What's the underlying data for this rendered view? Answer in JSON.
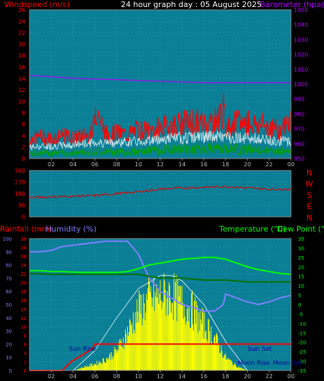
{
  "header": {
    "left_title": "Windspeed (m/s)",
    "center_title": "24 hour graph day : 05 August 2025",
    "right_title": "Barometer (hpa)"
  },
  "labels": {
    "rainfall": "Rainfall (mm)",
    "humidity": "Humidity (%)",
    "temperature": "Temperature (°C)",
    "dewpoint": "Dew Point (°C)",
    "sun_rise": "Sun Rise",
    "sun_set": "Sun Set",
    "moon_rise": "Moon Rise",
    "moon_set": "Moon Set"
  },
  "colors": {
    "plot_bg": "#0b7f96",
    "wind": "#ff0000",
    "gust": "#ff0000",
    "avg_wind": "#ffffff",
    "wind_low": "#00a000",
    "baro": "#b000ff",
    "direction": "#dd0000",
    "humidity": "#8080ff",
    "temperature": "#00ff00",
    "dewpoint": "#007000",
    "rain": "#ff0000",
    "solar": "#ffff00",
    "left_axis": "#ff0000",
    "humidity_axis": "#8080ff",
    "right_axis": "#00ff00",
    "baro_axis": "#b000ff"
  },
  "chart_data": [
    {
      "type": "line",
      "title": "24 hour graph day : 05 August 2025",
      "ylabel": "Windspeed (m/s)",
      "y2label": "Barometer (hpa)",
      "ylim": [
        0,
        26
      ],
      "y2lim": [
        950,
        1050
      ],
      "yticks": [
        "0",
        "2",
        "4",
        "6",
        "8",
        "10",
        "12",
        "14",
        "16",
        "18",
        "20",
        "22",
        "24",
        "26"
      ],
      "y2ticks": [
        "950",
        "960",
        "970",
        "980",
        "990",
        "1000",
        "1010",
        "1020",
        "1030",
        "1040",
        "1050"
      ],
      "xticks": [
        "02",
        "04",
        "06",
        "08",
        "10",
        "12",
        "14",
        "16",
        "18",
        "20",
        "22",
        "00"
      ],
      "xlim": [
        0,
        24
      ],
      "series": [
        {
          "kind": "gust",
          "x": [
            0,
            1,
            2,
            3,
            4,
            5,
            5.8,
            6,
            7,
            8,
            9,
            10,
            11,
            12,
            13,
            14,
            15,
            16,
            17,
            17.8,
            18,
            19,
            20,
            21,
            22,
            23,
            24
          ],
          "values": [
            4.8,
            5.2,
            4.9,
            5.5,
            5.0,
            5.6,
            6.0,
            12.5,
            6.0,
            6.2,
            5.8,
            7.0,
            6.5,
            7.5,
            8.0,
            8.5,
            9.0,
            8.5,
            9.0,
            11.5,
            8.0,
            8.5,
            8.8,
            8.2,
            7.8,
            6.5,
            9.5
          ]
        },
        {
          "kind": "avg",
          "x": [
            0,
            2,
            4,
            6,
            8,
            10,
            12,
            14,
            16,
            18,
            20,
            22,
            24
          ],
          "values": [
            2.0,
            2.2,
            2.4,
            2.8,
            2.8,
            3.0,
            3.4,
            3.6,
            3.8,
            3.8,
            3.6,
            3.2,
            3.0
          ]
        },
        {
          "kind": "low",
          "x": [
            0,
            2,
            4,
            6,
            8,
            10,
            12,
            14,
            16,
            18,
            20,
            22,
            24
          ],
          "values": [
            1.2,
            1.3,
            1.3,
            1.6,
            1.5,
            1.7,
            2.0,
            2.2,
            2.3,
            2.3,
            2.2,
            1.8,
            1.6
          ]
        },
        {
          "kind": "baro",
          "x": [
            0,
            2,
            4,
            6,
            8,
            10,
            12,
            14,
            16,
            18,
            20,
            22,
            24
          ],
          "values": [
            1006,
            1005,
            1004,
            1003.5,
            1003,
            1002.5,
            1002,
            1001.5,
            1001,
            1001,
            1001,
            1001,
            1001
          ]
        }
      ]
    },
    {
      "type": "line",
      "ylabel_letters": [
        "N",
        "W",
        "S",
        "E",
        "N"
      ],
      "ylim": [
        0,
        360
      ],
      "yticks": [
        "0",
        "90",
        "180",
        "270",
        "360"
      ],
      "xlim": [
        0,
        24
      ],
      "series": [
        {
          "kind": "direction",
          "x": [
            0,
            2,
            4,
            6,
            8,
            10,
            12,
            14,
            16,
            18,
            20,
            22,
            24
          ],
          "values": [
            150,
            155,
            160,
            165,
            180,
            195,
            215,
            225,
            230,
            235,
            225,
            215,
            215
          ]
        }
      ]
    },
    {
      "type": "line",
      "y1label": "Rainfall (mm)",
      "y2label": "Humidity (%)",
      "y3label": "Temperature (°C)",
      "y4label": "Dew Point (°C)",
      "rain_ticks": [
        "0",
        "2",
        "4",
        "6",
        "8",
        "10",
        "12",
        "14",
        "16",
        "18",
        "20",
        "22",
        "24",
        "26",
        "28",
        "30"
      ],
      "humidity_ticks": [
        "0",
        "10",
        "20",
        "30",
        "40",
        "50",
        "60",
        "70",
        "80",
        "90",
        "100"
      ],
      "temp_ticks": [
        "-35",
        "-30",
        "-25",
        "-20",
        "-15",
        "-10",
        "-5",
        "0",
        "5",
        "10",
        "15",
        "20",
        "25",
        "30",
        "35"
      ],
      "rain_lim": [
        0,
        30
      ],
      "humidity_lim": [
        0,
        100
      ],
      "temp_lim": [
        -35,
        35
      ],
      "xticks": [
        "02",
        "04",
        "06",
        "08",
        "10",
        "12",
        "14",
        "16",
        "18",
        "20",
        "22",
        "00"
      ],
      "xlim": [
        0,
        24
      ],
      "series": [
        {
          "kind": "humidity",
          "x": [
            0,
            1,
            2,
            3,
            4,
            5,
            6,
            7,
            8,
            9,
            10,
            11,
            12,
            13,
            14,
            15,
            16,
            17,
            17.8,
            18,
            19,
            20,
            21,
            22,
            23,
            24
          ],
          "values": [
            90,
            90,
            91,
            94,
            95,
            96,
            97,
            98,
            98,
            98,
            88,
            70,
            60,
            55,
            50,
            48,
            45,
            45,
            50,
            58,
            55,
            52,
            50,
            52,
            55,
            57
          ]
        },
        {
          "kind": "temperature",
          "x": [
            0,
            1,
            2,
            3,
            4,
            5,
            6,
            7,
            8,
            9,
            10,
            11,
            12,
            13,
            14,
            15,
            16,
            17,
            18,
            19,
            20,
            21,
            22,
            23,
            24
          ],
          "values": [
            18,
            18,
            17.5,
            17.5,
            17.2,
            17,
            17,
            17,
            17,
            17.5,
            19,
            21,
            22,
            23,
            24,
            24.5,
            25,
            25,
            24,
            22,
            20,
            18.5,
            17.5,
            16.5,
            16
          ]
        },
        {
          "kind": "dewpoint",
          "x": [
            0,
            2,
            4,
            6,
            8,
            10,
            11,
            12,
            14,
            16,
            18,
            20,
            22,
            24
          ],
          "values": [
            16.5,
            16,
            16,
            16,
            16,
            16,
            15,
            14,
            14,
            13,
            13,
            12,
            12,
            12
          ]
        },
        {
          "kind": "rain",
          "x": [
            0,
            3,
            3.8,
            4.5,
            5.8,
            6,
            7,
            8,
            9,
            10,
            11,
            12,
            13,
            14,
            15,
            16,
            17,
            17.8,
            18,
            19,
            20,
            21,
            22,
            23,
            24
          ],
          "values": [
            0,
            0,
            2,
            3,
            5,
            6,
            6,
            6,
            6,
            6,
            6,
            6,
            6,
            6,
            6,
            6,
            6,
            6,
            6,
            6,
            6,
            6,
            6,
            6,
            6
          ]
        },
        {
          "kind": "solar",
          "x": [
            0,
            4,
            5,
            6,
            7,
            8,
            9,
            10,
            11,
            12,
            13,
            14,
            15,
            16,
            17,
            18,
            19,
            20,
            24
          ],
          "values": [
            0,
            0,
            3,
            6,
            10,
            18,
            35,
            55,
            65,
            68,
            70,
            62,
            55,
            42,
            30,
            12,
            4,
            0,
            0
          ]
        },
        {
          "kind": "solar_max",
          "x": [
            4,
            6,
            8,
            10,
            12,
            13,
            14,
            16,
            18,
            20
          ],
          "values": [
            0,
            15,
            40,
            62,
            72,
            72,
            68,
            50,
            22,
            0
          ]
        }
      ]
    }
  ]
}
